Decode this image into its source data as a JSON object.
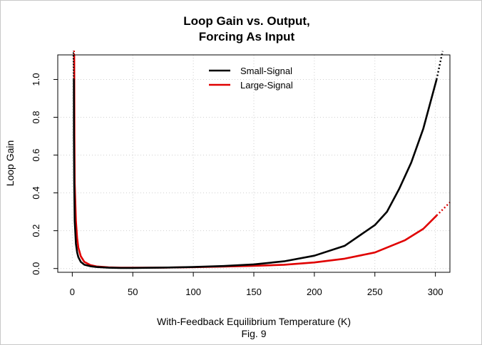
{
  "chart_data": {
    "type": "line",
    "title": [
      "Loop Gain vs. Output,",
      "Forcing As Input"
    ],
    "xlabel": "With-Feedback Equilibrium Temperature (K)",
    "ylabel": "Loop Gain",
    "caption": "Fig. 9",
    "xlim": [
      -12,
      312
    ],
    "ylim": [
      -0.02,
      1.13
    ],
    "xticks": [
      0,
      50,
      100,
      150,
      200,
      250,
      300
    ],
    "yticks": [
      0.0,
      0.2,
      0.4,
      0.6,
      0.8,
      1.0
    ],
    "xtick_labels": [
      "0",
      "50",
      "100",
      "150",
      "200",
      "250",
      "300"
    ],
    "ytick_labels": [
      "0.0",
      "0.2",
      "0.4",
      "0.6",
      "0.8",
      "1.0"
    ],
    "grid": true,
    "legend_position": "top-center",
    "series": [
      {
        "name": "Small-Signal",
        "color": "#000000",
        "x": [
          1.3,
          1.4,
          1.6,
          2,
          3,
          4,
          5,
          7,
          10,
          15,
          20,
          30,
          40,
          50,
          75,
          100,
          125,
          150,
          175,
          200,
          225,
          250,
          260,
          270,
          280,
          290,
          301
        ],
        "y": [
          1.0,
          0.7,
          0.45,
          0.25,
          0.13,
          0.085,
          0.06,
          0.035,
          0.02,
          0.012,
          0.008,
          0.004,
          0.003,
          0.003,
          0.005,
          0.008,
          0.013,
          0.022,
          0.038,
          0.068,
          0.12,
          0.23,
          0.3,
          0.42,
          0.56,
          0.74,
          1.0
        ],
        "extension_x": [
          301,
          306
        ],
        "extension_y": [
          1.0,
          1.15
        ]
      },
      {
        "name": "Large-Signal",
        "color": "#e00000",
        "x": [
          1.6,
          1.8,
          2,
          3,
          4,
          5,
          7,
          10,
          15,
          20,
          30,
          40,
          50,
          75,
          100,
          125,
          150,
          175,
          200,
          225,
          250,
          275,
          290,
          301
        ],
        "y": [
          1.13,
          0.7,
          0.45,
          0.25,
          0.16,
          0.11,
          0.065,
          0.035,
          0.018,
          0.011,
          0.006,
          0.004,
          0.004,
          0.005,
          0.007,
          0.01,
          0.014,
          0.02,
          0.032,
          0.052,
          0.085,
          0.15,
          0.21,
          0.28
        ],
        "extension_x": [
          301,
          312
        ],
        "extension_y": [
          0.28,
          0.35
        ]
      }
    ]
  }
}
